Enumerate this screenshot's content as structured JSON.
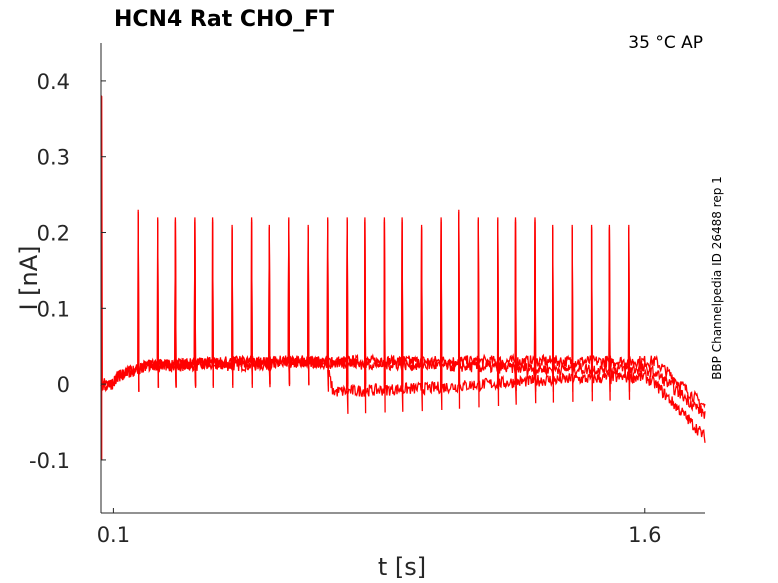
{
  "chart_data": {
    "type": "line",
    "title": "HCN4  Rat  CHO_FT",
    "annotation_top_right": "35 °C  AP",
    "side_label": "BBP Channelpedia ID 26488 rep 1",
    "xlabel": "t [s]",
    "ylabel": "I [nA]",
    "xlim": [
      0.065,
      1.77
    ],
    "ylim": [
      -0.17,
      0.45
    ],
    "x_ticks": [
      0.1,
      1.6
    ],
    "x_tick_labels": [
      "0.1",
      "1.6"
    ],
    "y_ticks": [
      -0.1,
      0,
      0.1,
      0.2,
      0.3,
      0.4
    ],
    "y_tick_labels": [
      "-0.1",
      "0",
      "0.1",
      "0.2",
      "0.3",
      "0.4"
    ],
    "grid": false,
    "line_color": "#ff0000",
    "stimulus_on": 0.1,
    "stimulus_off": 1.6,
    "spike_times": [
      0.17,
      0.225,
      0.275,
      0.33,
      0.38,
      0.435,
      0.49,
      0.54,
      0.595,
      0.65,
      0.705,
      0.76,
      0.81,
      0.865,
      0.915,
      0.97,
      1.025,
      1.075,
      1.13,
      1.185,
      1.235,
      1.29,
      1.34,
      1.395,
      1.45,
      1.5,
      1.555
    ],
    "spike_peaks": [
      0.23,
      0.22,
      0.22,
      0.22,
      0.22,
      0.21,
      0.22,
      0.21,
      0.22,
      0.21,
      0.22,
      0.22,
      0.22,
      0.22,
      0.22,
      0.21,
      0.22,
      0.23,
      0.22,
      0.22,
      0.22,
      0.22,
      0.21,
      0.21,
      0.21,
      0.21,
      0.21
    ],
    "series": [
      {
        "x": [
          0.065,
          0.1,
          0.11,
          0.2,
          0.5,
          0.7,
          1.0,
          1.3,
          1.6,
          1.63,
          1.77
        ],
        "values": [
          0.0,
          0.0,
          0.01,
          0.025,
          0.025,
          0.03,
          0.03,
          0.03,
          0.03,
          0.03,
          -0.03
        ]
      },
      {
        "x": [
          0.065,
          0.1,
          0.11,
          0.2,
          0.5,
          0.7,
          0.72,
          1.0,
          1.3,
          1.6,
          1.63,
          1.77
        ],
        "values": [
          0.0,
          0.0,
          0.01,
          0.025,
          0.03,
          0.03,
          -0.01,
          -0.005,
          0.005,
          0.01,
          0.0,
          -0.07
        ]
      },
      {
        "x": [
          0.065,
          0.1,
          0.11,
          0.2,
          0.5,
          1.0,
          1.3,
          1.6,
          1.63,
          1.77
        ],
        "values": [
          0.0,
          0.0,
          0.01,
          0.025,
          0.03,
          0.025,
          0.02,
          0.02,
          0.015,
          -0.04
        ]
      }
    ]
  }
}
